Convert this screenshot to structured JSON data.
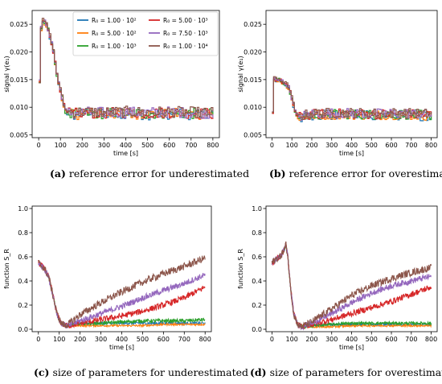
{
  "captions": [
    {
      "letter": "(a)",
      "text": "reference error for underestimated"
    },
    {
      "letter": "(b)",
      "text": "reference error for overestimated"
    },
    {
      "letter": "(c)",
      "text": "size of parameters for underestimated"
    },
    {
      "letter": "(d)",
      "text": "size of parameters for overestimated"
    }
  ],
  "chart_data": [
    {
      "type": "line",
      "xlabel": "time [s]",
      "ylabel": "signal γ(e₁)",
      "xlim": [
        -30,
        830
      ],
      "ylim": [
        0.0045,
        0.0275
      ],
      "xticks": [
        0,
        100,
        200,
        300,
        400,
        500,
        600,
        700,
        800
      ],
      "yticks": [
        0.005,
        0.01,
        0.015,
        0.02,
        0.025
      ],
      "ytick_labels": [
        "0.005",
        "0.010",
        "0.015",
        "0.020",
        "0.025"
      ],
      "legend": {
        "placement": "top-right",
        "columns": 2,
        "entries": [
          "R₀ = 1.00 · 10²",
          "R₀ = 5.00 · 10²",
          "R₀ = 1.00 · 10³",
          "R₀ = 5.00 · 10³",
          "R₀ = 7.50 · 10³",
          "R₀ = 1.00 · 10⁴"
        ]
      },
      "series_keys": [
        {
          "x": [
            0,
            5,
            10,
            20,
            30,
            40,
            50,
            60,
            70,
            80,
            90,
            100,
            110,
            120,
            130,
            140,
            160,
            200,
            300,
            400,
            500,
            600,
            700,
            800
          ],
          "y": [
            0.0145,
            0.0225,
            0.0255,
            0.0255,
            0.025,
            0.024,
            0.0225,
            0.021,
            0.0185,
            0.016,
            0.014,
            0.0125,
            0.0105,
            0.0093,
            0.009,
            0.0088,
            0.0088,
            0.009,
            0.0089,
            0.009,
            0.0089,
            0.009,
            0.0089,
            0.0088
          ],
          "noise": 0.001
        }
      ]
    },
    {
      "type": "line",
      "xlabel": "time [s]",
      "ylabel": "signal γ(e₁)",
      "xlim": [
        -30,
        830
      ],
      "ylim": [
        0.0045,
        0.0275
      ],
      "xticks": [
        0,
        100,
        200,
        300,
        400,
        500,
        600,
        700,
        800
      ],
      "yticks": [
        0.005,
        0.01,
        0.015,
        0.02,
        0.025
      ],
      "ytick_labels": [
        "0.005",
        "0.010",
        "0.015",
        "0.020",
        "0.025"
      ],
      "series_keys": [
        {
          "x": [
            0,
            5,
            10,
            30,
            50,
            70,
            80,
            90,
            100,
            110,
            120,
            130,
            140,
            160,
            200,
            300,
            400,
            500,
            600,
            700,
            800
          ],
          "y": [
            0.009,
            0.015,
            0.015,
            0.015,
            0.0145,
            0.014,
            0.0135,
            0.0125,
            0.011,
            0.0095,
            0.0085,
            0.0082,
            0.0082,
            0.0084,
            0.0087,
            0.0088,
            0.0088,
            0.0087,
            0.0088,
            0.0087,
            0.0086
          ],
          "noise": 0.0009
        }
      ]
    },
    {
      "type": "line",
      "xlabel": "time [s]",
      "ylabel": "function S_R",
      "xlim": [
        -30,
        830
      ],
      "ylim": [
        -0.02,
        1.02
      ],
      "xticks": [
        0,
        100,
        200,
        300,
        400,
        500,
        600,
        700,
        800
      ],
      "yticks": [
        0.0,
        0.2,
        0.4,
        0.6,
        0.8,
        1.0
      ],
      "ytick_labels": [
        "0.0",
        "0.2",
        "0.4",
        "0.6",
        "0.8",
        "1.0"
      ],
      "series": [
        {
          "name": "R₀ = 1.00 · 10²",
          "x": [
            0,
            30,
            50,
            70,
            90,
            110,
            130,
            150,
            170,
            200,
            300,
            400,
            500,
            600,
            700,
            800
          ],
          "y": [
            0.55,
            0.5,
            0.43,
            0.28,
            0.12,
            0.05,
            0.03,
            0.03,
            0.04,
            0.05,
            0.05,
            0.05,
            0.05,
            0.05,
            0.05,
            0.05
          ],
          "noise": 0.01
        },
        {
          "name": "R₀ = 5.00 · 10²",
          "x": [
            0,
            30,
            50,
            70,
            90,
            110,
            130,
            150,
            170,
            200,
            300,
            400,
            500,
            600,
            700,
            800
          ],
          "y": [
            0.55,
            0.5,
            0.43,
            0.28,
            0.12,
            0.05,
            0.03,
            0.03,
            0.03,
            0.03,
            0.03,
            0.03,
            0.03,
            0.04,
            0.04,
            0.04
          ],
          "noise": 0.008
        },
        {
          "name": "R₀ = 1.00 · 10³",
          "x": [
            0,
            30,
            50,
            70,
            90,
            110,
            130,
            150,
            170,
            200,
            300,
            400,
            500,
            600,
            700,
            800
          ],
          "y": [
            0.55,
            0.5,
            0.43,
            0.28,
            0.12,
            0.05,
            0.03,
            0.03,
            0.04,
            0.05,
            0.05,
            0.06,
            0.07,
            0.07,
            0.07,
            0.08
          ],
          "noise": 0.015
        },
        {
          "name": "R₀ = 5.00 · 10³",
          "x": [
            0,
            30,
            50,
            70,
            90,
            110,
            130,
            150,
            170,
            200,
            300,
            400,
            500,
            600,
            700,
            800
          ],
          "y": [
            0.55,
            0.5,
            0.43,
            0.28,
            0.12,
            0.05,
            0.03,
            0.03,
            0.04,
            0.05,
            0.08,
            0.11,
            0.15,
            0.2,
            0.26,
            0.35
          ],
          "noise": 0.025
        },
        {
          "name": "R₀ = 7.50 · 10³",
          "x": [
            0,
            30,
            50,
            70,
            90,
            110,
            130,
            150,
            170,
            200,
            300,
            400,
            500,
            600,
            700,
            800
          ],
          "y": [
            0.55,
            0.5,
            0.43,
            0.28,
            0.12,
            0.05,
            0.03,
            0.03,
            0.05,
            0.07,
            0.13,
            0.19,
            0.26,
            0.32,
            0.38,
            0.45
          ],
          "noise": 0.025
        },
        {
          "name": "R₀ = 1.00 · 10⁴",
          "x": [
            0,
            30,
            50,
            70,
            90,
            110,
            130,
            150,
            170,
            200,
            300,
            400,
            500,
            600,
            700,
            800
          ],
          "y": [
            0.55,
            0.5,
            0.43,
            0.28,
            0.12,
            0.05,
            0.03,
            0.05,
            0.08,
            0.12,
            0.22,
            0.31,
            0.39,
            0.46,
            0.52,
            0.59
          ],
          "noise": 0.03
        }
      ]
    },
    {
      "type": "line",
      "xlabel": "time [s]",
      "ylabel": "function S_R",
      "xlim": [
        -30,
        830
      ],
      "ylim": [
        -0.02,
        1.02
      ],
      "xticks": [
        0,
        100,
        200,
        300,
        400,
        500,
        600,
        700,
        800
      ],
      "yticks": [
        0.0,
        0.2,
        0.4,
        0.6,
        0.8,
        1.0
      ],
      "ytick_labels": [
        "0.0",
        "0.2",
        "0.4",
        "0.6",
        "0.8",
        "1.0"
      ],
      "series": [
        {
          "name": "R₀ = 1.00 · 10²",
          "x": [
            0,
            20,
            40,
            60,
            70,
            80,
            90,
            100,
            110,
            130,
            150,
            200,
            300,
            400,
            500,
            600,
            700,
            800
          ],
          "y": [
            0.55,
            0.58,
            0.6,
            0.65,
            0.7,
            0.6,
            0.4,
            0.25,
            0.12,
            0.04,
            0.02,
            0.03,
            0.04,
            0.04,
            0.04,
            0.04,
            0.04,
            0.04
          ],
          "noise": 0.01
        },
        {
          "name": "R₀ = 5.00 · 10²",
          "x": [
            0,
            20,
            40,
            60,
            70,
            80,
            90,
            100,
            110,
            130,
            150,
            200,
            300,
            400,
            500,
            600,
            700,
            800
          ],
          "y": [
            0.55,
            0.58,
            0.6,
            0.65,
            0.7,
            0.6,
            0.4,
            0.25,
            0.12,
            0.04,
            0.02,
            0.02,
            0.02,
            0.03,
            0.03,
            0.03,
            0.03,
            0.03
          ],
          "noise": 0.008
        },
        {
          "name": "R₀ = 1.00 · 10³",
          "x": [
            0,
            20,
            40,
            60,
            70,
            80,
            90,
            100,
            110,
            130,
            150,
            200,
            300,
            400,
            500,
            600,
            700,
            800
          ],
          "y": [
            0.55,
            0.58,
            0.6,
            0.65,
            0.7,
            0.6,
            0.4,
            0.25,
            0.12,
            0.04,
            0.02,
            0.03,
            0.04,
            0.05,
            0.05,
            0.05,
            0.05,
            0.05
          ],
          "noise": 0.012
        },
        {
          "name": "R₀ = 5.00 · 10³",
          "x": [
            0,
            20,
            40,
            60,
            70,
            80,
            90,
            100,
            110,
            130,
            150,
            200,
            300,
            400,
            500,
            600,
            700,
            800
          ],
          "y": [
            0.55,
            0.58,
            0.6,
            0.65,
            0.7,
            0.6,
            0.4,
            0.25,
            0.12,
            0.04,
            0.02,
            0.04,
            0.08,
            0.13,
            0.18,
            0.23,
            0.29,
            0.35
          ],
          "noise": 0.025
        },
        {
          "name": "R₀ = 7.50 · 10³",
          "x": [
            0,
            20,
            40,
            60,
            70,
            80,
            90,
            100,
            110,
            130,
            150,
            200,
            300,
            400,
            500,
            600,
            700,
            800
          ],
          "y": [
            0.55,
            0.58,
            0.6,
            0.65,
            0.7,
            0.6,
            0.4,
            0.25,
            0.12,
            0.04,
            0.02,
            0.05,
            0.13,
            0.22,
            0.3,
            0.36,
            0.4,
            0.44
          ],
          "noise": 0.025
        },
        {
          "name": "R₀ = 1.00 · 10⁴",
          "x": [
            0,
            20,
            40,
            60,
            70,
            80,
            90,
            100,
            110,
            130,
            150,
            200,
            300,
            400,
            500,
            600,
            700,
            800
          ],
          "y": [
            0.55,
            0.58,
            0.6,
            0.65,
            0.7,
            0.6,
            0.4,
            0.25,
            0.12,
            0.04,
            0.02,
            0.06,
            0.17,
            0.28,
            0.36,
            0.42,
            0.47,
            0.51
          ],
          "noise": 0.03
        }
      ]
    }
  ],
  "series_colors": [
    "#1f77b4",
    "#ff7f0e",
    "#2ca02c",
    "#d62728",
    "#9467bd",
    "#8c564b"
  ]
}
